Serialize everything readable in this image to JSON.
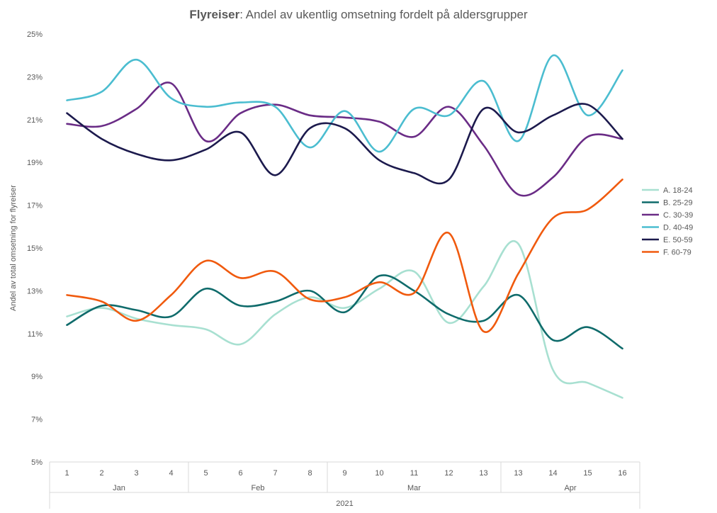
{
  "chart_data": {
    "type": "line",
    "title_bold": "Flyreiser",
    "title_rest": ": Andel av ukentlig omsetning fordelt på aldersgrupper",
    "ylabel": "Andel av total omsetning for flyreiser",
    "ylim": [
      5,
      25
    ],
    "yticks": [
      "5%",
      "7%",
      "9%",
      "11%",
      "13%",
      "15%",
      "17%",
      "19%",
      "21%",
      "23%",
      "25%"
    ],
    "ytick_values": [
      5,
      7,
      9,
      11,
      13,
      15,
      17,
      19,
      21,
      23,
      25
    ],
    "x": [
      "1",
      "2",
      "3",
      "4",
      "5",
      "6",
      "7",
      "8",
      "9",
      "10",
      "11",
      "12",
      "13",
      "13",
      "14",
      "15",
      "16"
    ],
    "months": [
      {
        "label": "Jan",
        "start": 0,
        "end": 3
      },
      {
        "label": "Feb",
        "start": 4,
        "end": 7
      },
      {
        "label": "Mar",
        "start": 8,
        "end": 12
      },
      {
        "label": "Apr",
        "start": 13,
        "end": 16
      }
    ],
    "year": "2021",
    "legend_position": "right",
    "grid": false,
    "series": [
      {
        "name": "A. 18-24",
        "color": "#a8e0d1",
        "values": [
          11.8,
          12.2,
          11.7,
          11.4,
          11.2,
          10.5,
          11.9,
          12.7,
          12.2,
          13.1,
          13.9,
          11.5,
          13.2,
          15.2,
          9.3,
          8.7,
          8.0
        ]
      },
      {
        "name": "B. 25-29",
        "color": "#0f6b6b",
        "values": [
          11.4,
          12.3,
          12.1,
          11.8,
          13.1,
          12.3,
          12.5,
          13.0,
          12.0,
          13.7,
          13.0,
          11.9,
          11.6,
          12.8,
          10.7,
          11.3,
          10.3
        ]
      },
      {
        "name": "C. 30-39",
        "color": "#6a2c86",
        "values": [
          20.8,
          20.7,
          21.5,
          22.7,
          20.0,
          21.3,
          21.7,
          21.2,
          21.1,
          20.9,
          20.2,
          21.6,
          19.8,
          17.5,
          18.3,
          20.2,
          20.1
        ]
      },
      {
        "name": "D. 40-49",
        "color": "#4bbdd0",
        "values": [
          21.9,
          22.3,
          23.8,
          22.0,
          21.6,
          21.8,
          21.6,
          19.7,
          21.4,
          19.5,
          21.5,
          21.2,
          22.8,
          20.0,
          24.0,
          21.2,
          23.3
        ]
      },
      {
        "name": "E. 50-59",
        "color": "#1c1a4d",
        "values": [
          21.3,
          20.1,
          19.4,
          19.1,
          19.6,
          20.4,
          18.4,
          20.6,
          20.6,
          19.1,
          18.5,
          18.2,
          21.5,
          20.4,
          21.2,
          21.7,
          20.1
        ]
      },
      {
        "name": "F. 60-79",
        "color": "#f05a0e",
        "values": [
          12.8,
          12.5,
          11.6,
          12.8,
          14.4,
          13.6,
          13.9,
          12.6,
          12.7,
          13.4,
          12.9,
          15.7,
          11.1,
          13.8,
          16.4,
          16.8,
          18.2
        ]
      }
    ]
  }
}
